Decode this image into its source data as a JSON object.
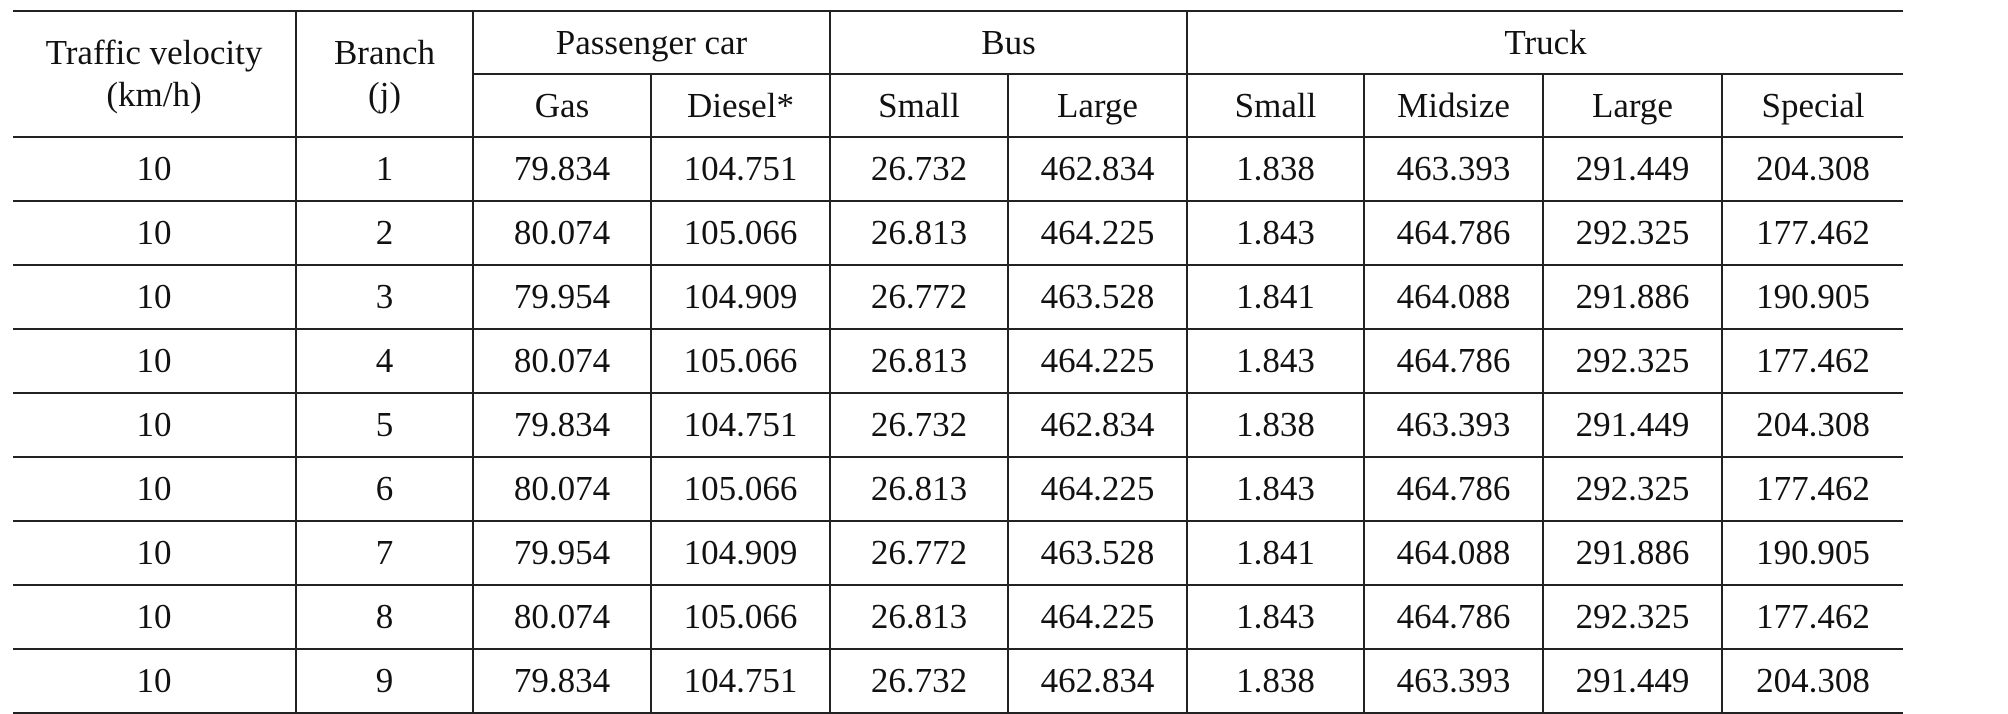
{
  "header": {
    "velocity": [
      "Traffic velocity",
      "(km/h)"
    ],
    "branch": [
      "Branch",
      "(j)"
    ],
    "groups": [
      "Passenger car",
      "Bus",
      "Truck"
    ],
    "subs": [
      "Gas",
      "Diesel*",
      "Small",
      "Large",
      "Small",
      "Midsize",
      "Large",
      "Special"
    ]
  },
  "table": {
    "rows": [
      [
        "10",
        "1",
        "79.834",
        "104.751",
        "26.732",
        "462.834",
        "1.838",
        "463.393",
        "291.449",
        "204.308"
      ],
      [
        "10",
        "2",
        "80.074",
        "105.066",
        "26.813",
        "464.225",
        "1.843",
        "464.786",
        "292.325",
        "177.462"
      ],
      [
        "10",
        "3",
        "79.954",
        "104.909",
        "26.772",
        "463.528",
        "1.841",
        "464.088",
        "291.886",
        "190.905"
      ],
      [
        "10",
        "4",
        "80.074",
        "105.066",
        "26.813",
        "464.225",
        "1.843",
        "464.786",
        "292.325",
        "177.462"
      ],
      [
        "10",
        "5",
        "79.834",
        "104.751",
        "26.732",
        "462.834",
        "1.838",
        "463.393",
        "291.449",
        "204.308"
      ],
      [
        "10",
        "6",
        "80.074",
        "105.066",
        "26.813",
        "464.225",
        "1.843",
        "464.786",
        "292.325",
        "177.462"
      ],
      [
        "10",
        "7",
        "79.954",
        "104.909",
        "26.772",
        "463.528",
        "1.841",
        "464.088",
        "291.886",
        "190.905"
      ],
      [
        "10",
        "8",
        "80.074",
        "105.066",
        "26.813",
        "464.225",
        "1.843",
        "464.786",
        "292.325",
        "177.462"
      ],
      [
        "10",
        "9",
        "79.834",
        "104.751",
        "26.732",
        "462.834",
        "1.838",
        "463.393",
        "291.449",
        "204.308"
      ]
    ]
  }
}
